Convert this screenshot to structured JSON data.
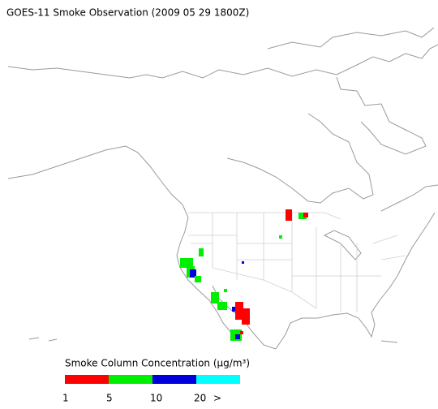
{
  "title": "GOES-11 Smoke Observation (2009 05 29  1800Z)",
  "legend": {
    "title": "Smoke Column Concentration (μg/m³)",
    "colors": [
      "#ff0000",
      "#00ee00",
      "#0000dd",
      "#00ffff"
    ],
    "labels": [
      "1",
      "5",
      "10",
      "20",
      ">"
    ]
  }
}
